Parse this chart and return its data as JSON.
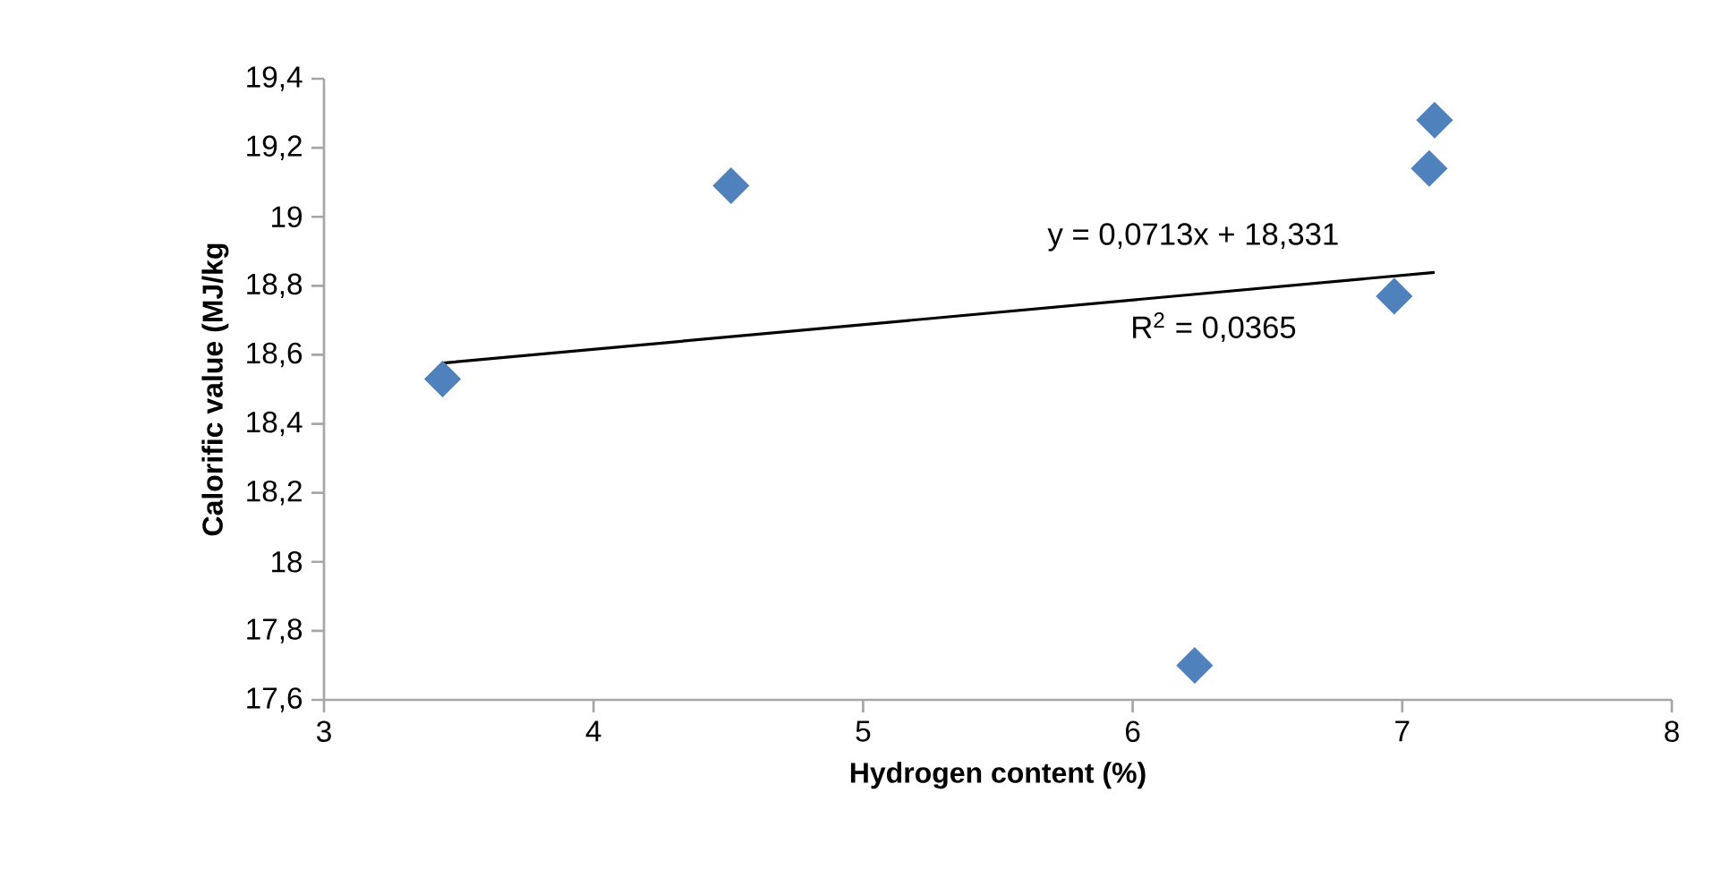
{
  "chart_data": {
    "type": "scatter",
    "xlabel": "Hydrogen content (%)",
    "ylabel": "Calorific value (MJ/kg",
    "xlim": [
      3,
      8
    ],
    "xticks": [
      3,
      4,
      5,
      6,
      7,
      8
    ],
    "ylim": [
      17.6,
      19.4
    ],
    "yticks": [
      {
        "value": 17.6,
        "label": "17,6"
      },
      {
        "value": 17.8,
        "label": "17,8"
      },
      {
        "value": 18,
        "label": "18"
      },
      {
        "value": 18.2,
        "label": "18,2"
      },
      {
        "value": 18.4,
        "label": "18,4"
      },
      {
        "value": 18.6,
        "label": "18,6"
      },
      {
        "value": 18.8,
        "label": "18,8"
      },
      {
        "value": 19,
        "label": "19"
      },
      {
        "value": 19.2,
        "label": "19,2"
      },
      {
        "value": 19.4,
        "label": "19,4"
      }
    ],
    "grid": false,
    "annotations": [
      "y = 0,0713x + 18,331",
      "R$^{2}$ = 0,0365"
    ],
    "series": [
      {
        "type": "scatter",
        "marker": "diamond",
        "color": "#4f81bd",
        "x": [
          3.44,
          4.51,
          6.23,
          6.97,
          7.1,
          7.12
        ],
        "values": [
          18.53,
          19.09,
          17.7,
          18.77,
          19.14,
          19.28
        ]
      },
      {
        "type": "line",
        "marker": "none",
        "line_style": "solid",
        "color": "#000000",
        "x": [
          3.44,
          7.12
        ],
        "values": [
          18.576,
          18.839
        ]
      }
    ]
  }
}
